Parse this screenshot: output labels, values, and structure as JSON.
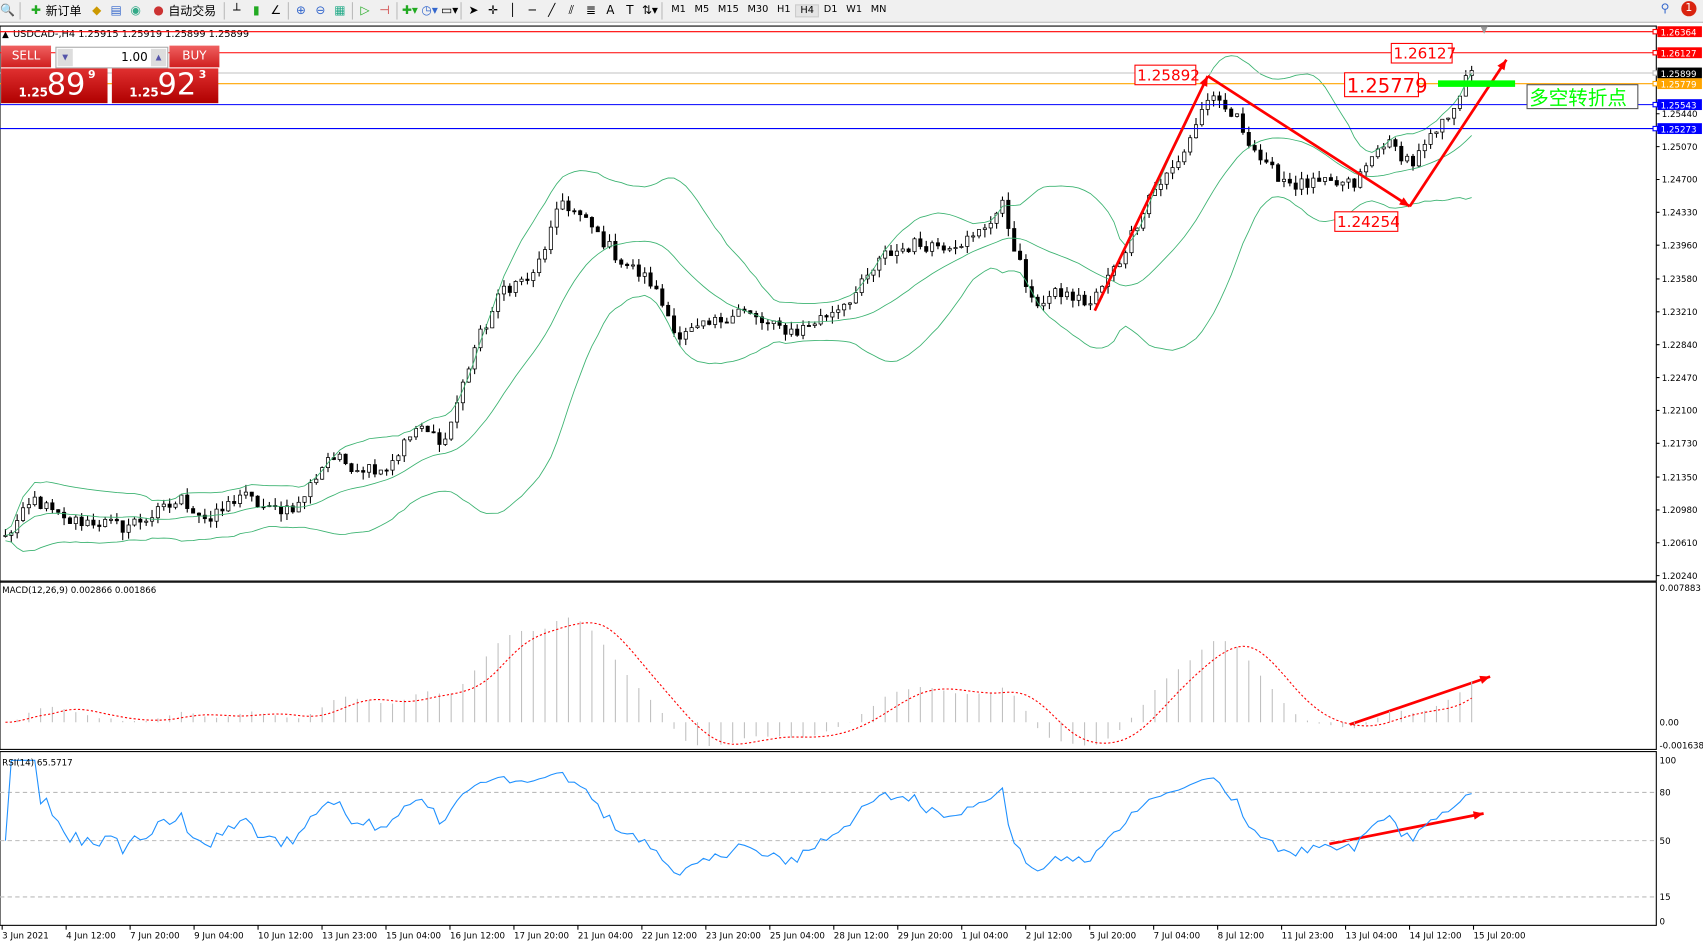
{
  "toolbar": {
    "new_order": "新订单",
    "auto_trading": "自动交易",
    "timeframes": [
      "M1",
      "M5",
      "M15",
      "M30",
      "H1",
      "H4",
      "D1",
      "W1",
      "MN"
    ],
    "active_timeframe": "H4",
    "notifications": "1"
  },
  "chart_header": "USDCAD-,H4  1.25915 1.25919 1.25899 1.25899",
  "trade_panel": {
    "sell_label": "SELL",
    "buy_label": "BUY",
    "lot": "1.00",
    "sell_big": "1.25",
    "sell_pips": "89",
    "sell_frac": "9",
    "buy_big": "1.25",
    "buy_pips": "92",
    "buy_frac": "3"
  },
  "chart_data": {
    "type": "candlestick",
    "symbol": "USDCAD-",
    "timeframe": "H4",
    "ylim": [
      1.2024,
      1.2655
    ],
    "closes_every_5_bars": [
      1.20668,
      1.21096,
      1.20852,
      1.20852,
      1.2079,
      1.20913,
      1.21096,
      1.20852,
      1.21157,
      1.20974,
      1.21035,
      1.21585,
      1.21463,
      1.21463,
      1.21891,
      1.21769,
      1.22808,
      1.23481,
      1.23603,
      1.24459,
      1.24154,
      1.23787,
      1.23542,
      1.22931,
      1.23053,
      1.23236,
      1.23053,
      1.22992,
      1.23175,
      1.2342,
      1.23848,
      1.2397,
      1.2397,
      1.24031,
      1.24398,
      1.23297,
      1.2342,
      1.23297,
      1.23787,
      1.24521,
      1.24887,
      1.25621,
      1.25377,
      1.24826,
      1.24643,
      1.24643,
      1.24643,
      1.25132,
      1.24887,
      1.25316,
      1.25927
    ],
    "price_ticks": [
      "1.25440",
      "1.25070",
      "1.24700",
      "1.24330",
      "1.23960",
      "1.23580",
      "1.23210",
      "1.22840",
      "1.22470",
      "1.22100",
      "1.21730",
      "1.21350",
      "1.20980",
      "1.20610",
      "1.20240"
    ],
    "x_ticks": [
      "3 Jun 2021",
      "4 Jun 12:00",
      "7 Jun 20:00",
      "9 Jun 04:00",
      "10 Jun 12:00",
      "13 Jun 23:00",
      "15 Jun 04:00",
      "16 Jun 12:00",
      "17 Jun 20:00",
      "21 Jun 04:00",
      "22 Jun 12:00",
      "23 Jun 20:00",
      "25 Jun 04:00",
      "28 Jun 12:00",
      "29 Jun 20:00",
      "1 Jul 04:00",
      "2 Jul 12:00",
      "5 Jul 20:00",
      "7 Jul 04:00",
      "8 Jul 12:00",
      "11 Jul 23:00",
      "13 Jul 04:00",
      "14 Jul 12:00",
      "15 Jul 20:00"
    ],
    "hlines": [
      {
        "price": "1.26364",
        "color": "#ff0000"
      },
      {
        "price": "1.26127",
        "color": "#ff0000"
      },
      {
        "price": "1.25899",
        "color": "#c0c0c0",
        "label_bg": "#000000"
      },
      {
        "price": "1.25779",
        "color": "#ffa500"
      },
      {
        "price": "1.25543",
        "color": "#0000ff"
      },
      {
        "price": "1.25273",
        "color": "#0000ff"
      }
    ],
    "annotations": {
      "high1": "1.25892",
      "pivot": "1.25779",
      "high2": "1.26127",
      "low": "1.24254",
      "turning_point": "多空转折点"
    },
    "indicators": {
      "bollinger": "green",
      "macd_label": "MACD(12,26,9) 0.002866 0.001866",
      "macd_ticks": [
        "0.007883",
        "0.00",
        "-0.001638"
      ],
      "rsi_label": "RSI(14) 65.5717",
      "rsi_ticks": [
        "100",
        "80",
        "50",
        "15",
        "0"
      ]
    },
    "colors": {
      "bull": "#ffffff",
      "bear": "#000000",
      "bands": "#3cb371",
      "annotation": "#ff0000",
      "rsi": "#1e90ff",
      "macd_signal": "#ff0000",
      "macd_hist": "#c0c0c0",
      "pivot_zone": "#00ff00"
    }
  }
}
